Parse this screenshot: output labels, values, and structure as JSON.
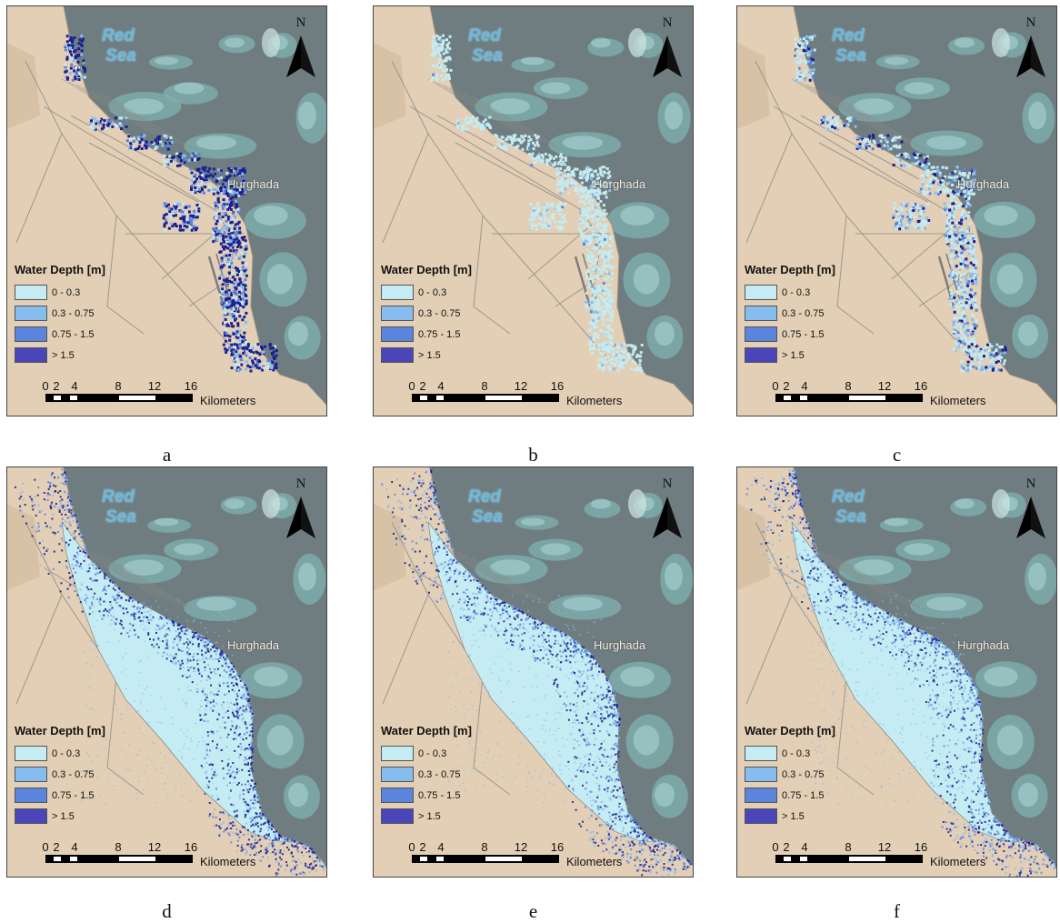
{
  "sea_label": [
    "Red",
    "Sea"
  ],
  "city_label": "Hurghada",
  "north_label": "N",
  "legend": {
    "title": "Water Depth [m]",
    "classes": [
      {
        "label": "0 - 0.3",
        "color": "#c4ecf2"
      },
      {
        "label": "0.3 - 0.75",
        "color": "#86bdee"
      },
      {
        "label": "0.75 - 1.5",
        "color": "#5b84dd"
      },
      {
        "label": "> 1.5",
        "color": "#4a45b8"
      }
    ]
  },
  "scale": {
    "ticks": [
      "0",
      "2",
      "4",
      "8",
      "12",
      "16"
    ],
    "units": "Kilometers"
  },
  "colors": {
    "land": "#e3cfb5",
    "sea": "#6f7d80",
    "reef": "#7fb2b2",
    "road": "#8a8a86",
    "flood_deep": "#1b1f8f"
  },
  "panels": [
    {
      "caption": "a",
      "extent": "coastal"
    },
    {
      "caption": "b",
      "extent": "coastal"
    },
    {
      "caption": "c",
      "extent": "coastal"
    },
    {
      "caption": "d",
      "extent": "citywide"
    },
    {
      "caption": "e",
      "extent": "citywide"
    },
    {
      "caption": "f",
      "extent": "citywide"
    }
  ]
}
